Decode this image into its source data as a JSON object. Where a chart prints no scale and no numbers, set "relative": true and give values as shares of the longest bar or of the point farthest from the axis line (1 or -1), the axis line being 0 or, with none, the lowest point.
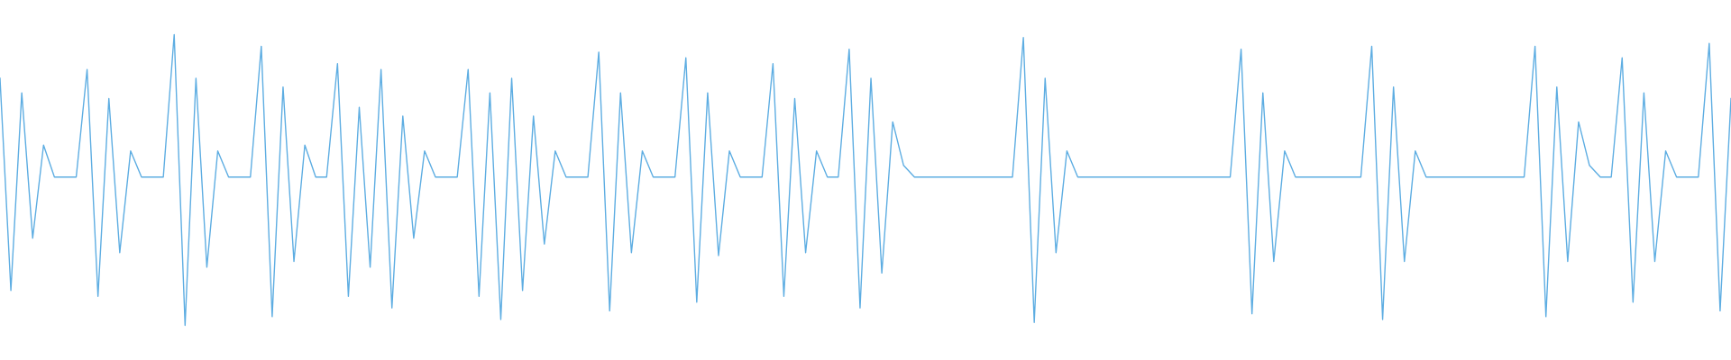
{
  "chart_data": {
    "type": "line",
    "relative": true,
    "categories": [
      null,
      null,
      null,
      null,
      null,
      null,
      null,
      null,
      null,
      null,
      null,
      null,
      null,
      null,
      null,
      null,
      null,
      null,
      null,
      null,
      null,
      null,
      null,
      null,
      null,
      null,
      null,
      null,
      null,
      null,
      null,
      null,
      null,
      null,
      null,
      null,
      null,
      null,
      null,
      null,
      null,
      null,
      null,
      null,
      null,
      null,
      null,
      null,
      null,
      null,
      null,
      null,
      null,
      null,
      null,
      null,
      null,
      null,
      null,
      null,
      null,
      null,
      null,
      null,
      null,
      null,
      null,
      null,
      null,
      null,
      null,
      null,
      null,
      null,
      null,
      null,
      null,
      null,
      null,
      null,
      null,
      null,
      null,
      null,
      null,
      null,
      null,
      null,
      null,
      null,
      null,
      null,
      null,
      null,
      null,
      null,
      null,
      null,
      null,
      null,
      null,
      null,
      null,
      null,
      null,
      null,
      null,
      null,
      null,
      null,
      null,
      null,
      null,
      null,
      null,
      null,
      null,
      null,
      null,
      null,
      null,
      null,
      null,
      null,
      null,
      null,
      null,
      null,
      null,
      null,
      null,
      null,
      null,
      null,
      null,
      null,
      null,
      null,
      null,
      null,
      null,
      null,
      null,
      null,
      null,
      null,
      null,
      null,
      null,
      null,
      null,
      null,
      null,
      null,
      null,
      null,
      null,
      null,
      null,
      null
    ],
    "series": [
      {
        "color": "#5dade2",
        "values": [
          0.85,
          0.12,
          0.8,
          0.3,
          0.62,
          0.51,
          0.51,
          0.51,
          0.88,
          0.1,
          0.78,
          0.25,
          0.6,
          0.51,
          0.51,
          0.51,
          1.0,
          0.0,
          0.85,
          0.2,
          0.6,
          0.51,
          0.51,
          0.51,
          0.96,
          0.03,
          0.82,
          0.22,
          0.62,
          0.51,
          0.51,
          0.9,
          0.1,
          0.75,
          0.2,
          0.88,
          0.06,
          0.72,
          0.3,
          0.6,
          0.51,
          0.51,
          0.51,
          0.88,
          0.1,
          0.8,
          0.02,
          0.85,
          0.12,
          0.72,
          0.28,
          0.6,
          0.51,
          0.51,
          0.51,
          0.94,
          0.05,
          0.8,
          0.25,
          0.6,
          0.51,
          0.51,
          0.51,
          0.92,
          0.08,
          0.8,
          0.24,
          0.6,
          0.51,
          0.51,
          0.51,
          0.9,
          0.1,
          0.78,
          0.25,
          0.6,
          0.51,
          0.51,
          0.95,
          0.06,
          0.85,
          0.18,
          0.7,
          0.55,
          0.51,
          0.51,
          0.51,
          0.51,
          0.51,
          0.51,
          0.51,
          0.51,
          0.51,
          0.51,
          0.99,
          0.01,
          0.85,
          0.25,
          0.6,
          0.51,
          0.51,
          0.51,
          0.51,
          0.51,
          0.51,
          0.51,
          0.51,
          0.51,
          0.51,
          0.51,
          0.51,
          0.51,
          0.51,
          0.51,
          0.95,
          0.04,
          0.8,
          0.22,
          0.6,
          0.51,
          0.51,
          0.51,
          0.51,
          0.51,
          0.51,
          0.51,
          0.96,
          0.02,
          0.82,
          0.22,
          0.6,
          0.51,
          0.51,
          0.51,
          0.51,
          0.51,
          0.51,
          0.51,
          0.51,
          0.51,
          0.51,
          0.96,
          0.03,
          0.82,
          0.22,
          0.7,
          0.55,
          0.51,
          0.51,
          0.92,
          0.08,
          0.8,
          0.22,
          0.6,
          0.51,
          0.51,
          0.51,
          0.97,
          0.05,
          0.78
        ]
      }
    ]
  }
}
